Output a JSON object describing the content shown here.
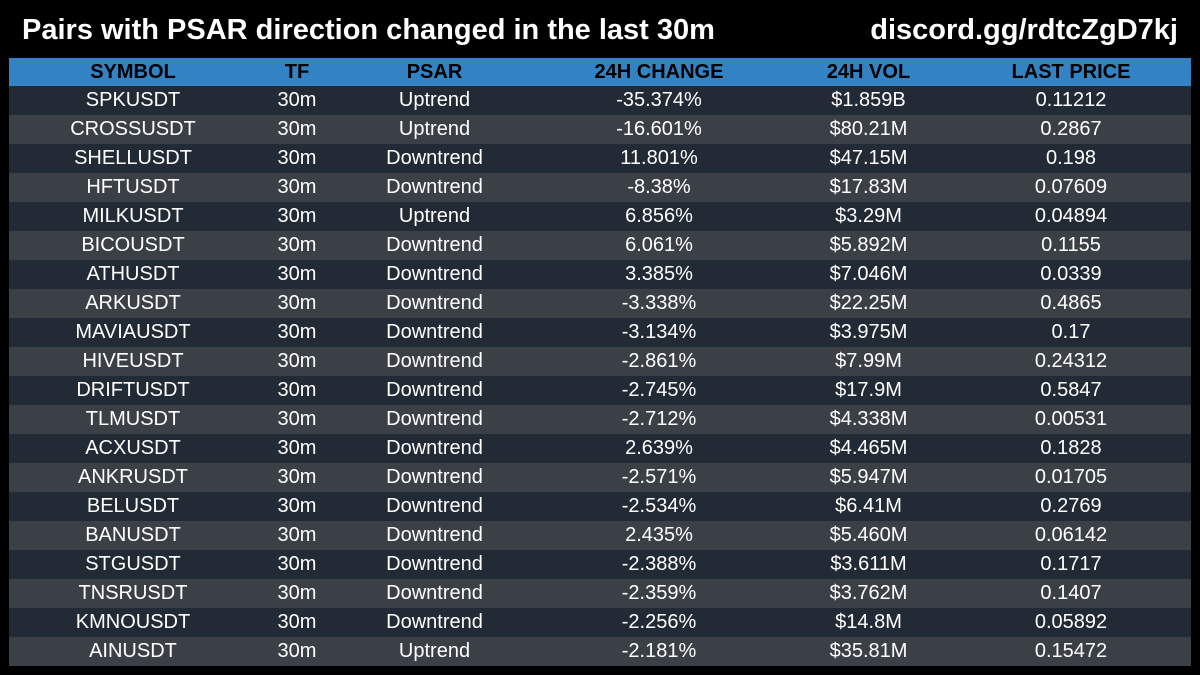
{
  "header": {
    "title": "Pairs with PSAR direction changed in the last 30m",
    "invite": "discord.gg/rdtcZgD7kj"
  },
  "table": {
    "columns": [
      "SYMBOL",
      "TF",
      "PSAR",
      "24H CHANGE",
      "24H VOL",
      "LAST PRICE"
    ],
    "rows": [
      [
        "SPKUSDT",
        "30m",
        "Uptrend",
        "-35.374%",
        "$1.859B",
        "0.11212"
      ],
      [
        "CROSSUSDT",
        "30m",
        "Uptrend",
        "-16.601%",
        "$80.21M",
        "0.2867"
      ],
      [
        "SHELLUSDT",
        "30m",
        "Downtrend",
        "11.801%",
        "$47.15M",
        "0.198"
      ],
      [
        "HFTUSDT",
        "30m",
        "Downtrend",
        "-8.38%",
        "$17.83M",
        "0.07609"
      ],
      [
        "MILKUSDT",
        "30m",
        "Uptrend",
        "6.856%",
        "$3.29M",
        "0.04894"
      ],
      [
        "BICOUSDT",
        "30m",
        "Downtrend",
        "6.061%",
        "$5.892M",
        "0.1155"
      ],
      [
        "ATHUSDT",
        "30m",
        "Downtrend",
        "3.385%",
        "$7.046M",
        "0.0339"
      ],
      [
        "ARKUSDT",
        "30m",
        "Downtrend",
        "-3.338%",
        "$22.25M",
        "0.4865"
      ],
      [
        "MAVIAUSDT",
        "30m",
        "Downtrend",
        "-3.134%",
        "$3.975M",
        "0.17"
      ],
      [
        "HIVEUSDT",
        "30m",
        "Downtrend",
        "-2.861%",
        "$7.99M",
        "0.24312"
      ],
      [
        "DRIFTUSDT",
        "30m",
        "Downtrend",
        "-2.745%",
        "$17.9M",
        "0.5847"
      ],
      [
        "TLMUSDT",
        "30m",
        "Downtrend",
        "-2.712%",
        "$4.338M",
        "0.00531"
      ],
      [
        "ACXUSDT",
        "30m",
        "Downtrend",
        "2.639%",
        "$4.465M",
        "0.1828"
      ],
      [
        "ANKRUSDT",
        "30m",
        "Downtrend",
        "-2.571%",
        "$5.947M",
        "0.01705"
      ],
      [
        "BELUSDT",
        "30m",
        "Downtrend",
        "-2.534%",
        "$6.41M",
        "0.2769"
      ],
      [
        "BANUSDT",
        "30m",
        "Downtrend",
        "2.435%",
        "$5.460M",
        "0.06142"
      ],
      [
        "STGUSDT",
        "30m",
        "Downtrend",
        "-2.388%",
        "$3.611M",
        "0.1717"
      ],
      [
        "TNSRUSDT",
        "30m",
        "Downtrend",
        "-2.359%",
        "$3.762M",
        "0.1407"
      ],
      [
        "KMNOUSDT",
        "30m",
        "Downtrend",
        "-2.256%",
        "$14.8M",
        "0.05892"
      ],
      [
        "AINUSDT",
        "30m",
        "Uptrend",
        "-2.181%",
        "$35.81M",
        "0.15472"
      ]
    ]
  },
  "colors": {
    "background": "#000000",
    "header_row": "#3383c4",
    "row_dark": "#222a35",
    "row_light": "#3b4047",
    "text": "#ffffff"
  }
}
